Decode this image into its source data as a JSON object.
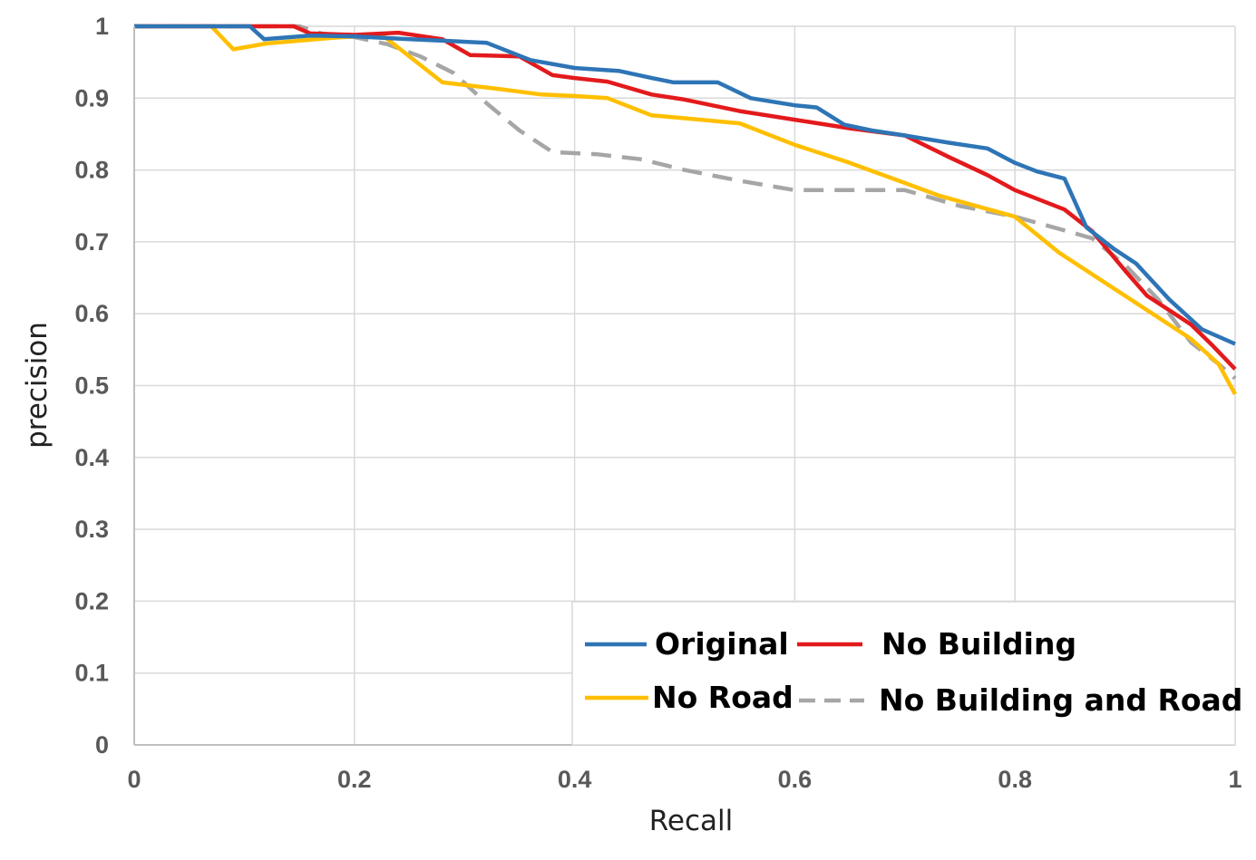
{
  "chart_data": {
    "type": "line",
    "title": "",
    "xlabel": "Recall",
    "ylabel": "precision",
    "xlim": [
      0,
      1
    ],
    "ylim": [
      0,
      1
    ],
    "x_ticks": [
      "0",
      "0.2",
      "0.4",
      "0.6",
      "0.8",
      "1"
    ],
    "y_ticks": [
      "0",
      "0.1",
      "0.2",
      "0.3",
      "0.4",
      "0.5",
      "0.6",
      "0.7",
      "0.8",
      "0.9",
      "1"
    ],
    "grid": true,
    "legend_position": "bottom-right",
    "series": [
      {
        "name": "Original",
        "color": "#2E75B6",
        "dash": "solid",
        "x": [
          0,
          0.105,
          0.118,
          0.16,
          0.2,
          0.25,
          0.28,
          0.32,
          0.36,
          0.4,
          0.44,
          0.47,
          0.49,
          0.53,
          0.56,
          0.6,
          0.62,
          0.645,
          0.67,
          0.7,
          0.74,
          0.775,
          0.8,
          0.82,
          0.845,
          0.865,
          0.89,
          0.91,
          0.94,
          0.97,
          1.0
        ],
        "y": [
          1.0,
          1.0,
          0.982,
          0.987,
          0.986,
          0.982,
          0.98,
          0.977,
          0.953,
          0.942,
          0.938,
          0.928,
          0.922,
          0.922,
          0.9,
          0.89,
          0.887,
          0.863,
          0.855,
          0.848,
          0.838,
          0.83,
          0.81,
          0.798,
          0.788,
          0.72,
          0.69,
          0.67,
          0.62,
          0.578,
          0.558
        ]
      },
      {
        "name": "No Building",
        "color": "#E31A1C",
        "dash": "solid",
        "x": [
          0,
          0.13,
          0.145,
          0.16,
          0.2,
          0.24,
          0.28,
          0.305,
          0.35,
          0.38,
          0.4,
          0.43,
          0.47,
          0.5,
          0.55,
          0.6,
          0.65,
          0.7,
          0.74,
          0.775,
          0.8,
          0.845,
          0.87,
          0.9,
          0.92,
          0.94,
          0.96,
          0.98,
          1.0
        ],
        "y": [
          1.0,
          1.0,
          1.0,
          0.99,
          0.988,
          0.991,
          0.982,
          0.96,
          0.958,
          0.932,
          0.928,
          0.923,
          0.905,
          0.898,
          0.882,
          0.87,
          0.858,
          0.848,
          0.818,
          0.793,
          0.772,
          0.745,
          0.715,
          0.66,
          0.625,
          0.605,
          0.585,
          0.555,
          0.523
        ]
      },
      {
        "name": "No Road",
        "color": "#FFBF00",
        "dash": "solid",
        "x": [
          0,
          0.07,
          0.09,
          0.12,
          0.18,
          0.225,
          0.28,
          0.33,
          0.37,
          0.4,
          0.43,
          0.47,
          0.5,
          0.55,
          0.6,
          0.65,
          0.7,
          0.73,
          0.76,
          0.8,
          0.84,
          0.88,
          0.92,
          0.96,
          0.985,
          1.0
        ],
        "y": [
          1.0,
          1.0,
          0.968,
          0.976,
          0.984,
          0.988,
          0.922,
          0.913,
          0.905,
          0.903,
          0.9,
          0.876,
          0.872,
          0.865,
          0.835,
          0.81,
          0.782,
          0.765,
          0.752,
          0.735,
          0.685,
          0.645,
          0.605,
          0.565,
          0.53,
          0.488
        ]
      },
      {
        "name": "No Building and Road",
        "color": "#A6A6A6",
        "dash": "dashed",
        "x": [
          0,
          0.15,
          0.17,
          0.2,
          0.23,
          0.26,
          0.29,
          0.32,
          0.35,
          0.38,
          0.42,
          0.46,
          0.5,
          0.55,
          0.6,
          0.65,
          0.7,
          0.75,
          0.8,
          0.84,
          0.87,
          0.9,
          0.93,
          0.96,
          0.985,
          1.0
        ],
        "y": [
          1.0,
          1.0,
          0.99,
          0.985,
          0.975,
          0.958,
          0.935,
          0.893,
          0.855,
          0.825,
          0.822,
          0.815,
          0.8,
          0.785,
          0.772,
          0.772,
          0.772,
          0.75,
          0.735,
          0.718,
          0.705,
          0.668,
          0.62,
          0.56,
          0.53,
          0.51
        ]
      }
    ]
  }
}
